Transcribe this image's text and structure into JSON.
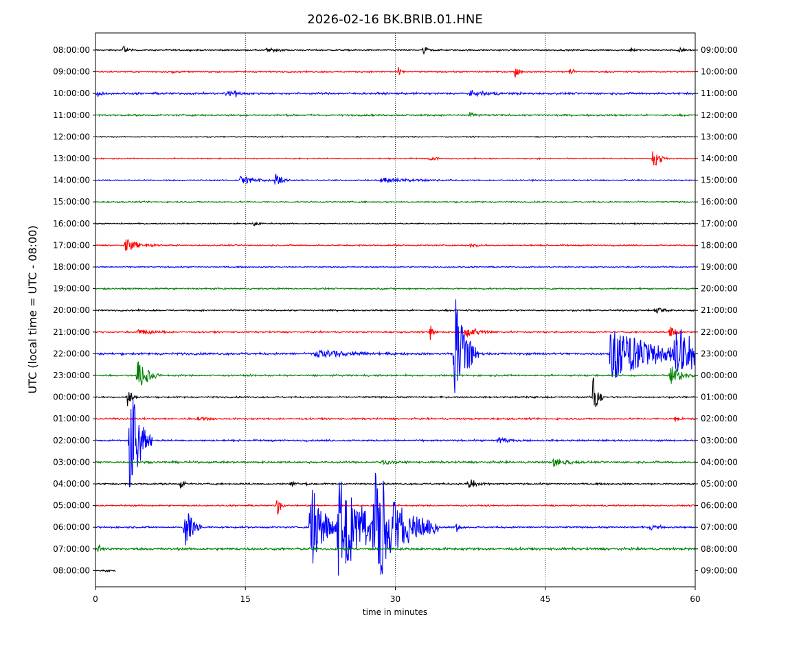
{
  "chart_data": {
    "type": "line",
    "title": "2026-02-16 BK.BRIB.01.HNE",
    "xlabel": "time in minutes",
    "ylabel": "UTC (local time = UTC - 08:00)",
    "xlim": [
      0,
      60
    ],
    "x_ticks": [
      0,
      15,
      30,
      45,
      60
    ],
    "x_tick_labels": [
      "0",
      "15",
      "30",
      "45",
      "60"
    ],
    "vertical_gridlines": [
      15,
      30,
      45
    ],
    "grid": "vertical dotted",
    "trace_colors": [
      "#000000",
      "#ff0000",
      "#0000ff",
      "#008000"
    ],
    "left_labels": [
      "08:00:00",
      "09:00:00",
      "10:00:00",
      "11:00:00",
      "12:00:00",
      "13:00:00",
      "14:00:00",
      "15:00:00",
      "16:00:00",
      "17:00:00",
      "18:00:00",
      "19:00:00",
      "20:00:00",
      "21:00:00",
      "22:00:00",
      "23:00:00",
      "00:00:00",
      "01:00:00",
      "02:00:00",
      "03:00:00",
      "04:00:00",
      "05:00:00",
      "06:00:00",
      "07:00:00",
      "08:00:00"
    ],
    "right_labels": [
      "09:00:00",
      "10:00:00",
      "11:00:00",
      "12:00:00",
      "13:00:00",
      "14:00:00",
      "15:00:00",
      "16:00:00",
      "17:00:00",
      "18:00:00",
      "19:00:00",
      "20:00:00",
      "21:00:00",
      "22:00:00",
      "23:00:00",
      "00:00:00",
      "01:00:00",
      "02:00:00",
      "03:00:00",
      "04:00:00",
      "05:00:00",
      "06:00:00",
      "07:00:00",
      "08:00:00",
      "09:00:00"
    ],
    "noise_level": [
      0.8,
      0.8,
      1.2,
      1.0,
      0.6,
      0.7,
      0.7,
      0.8,
      0.7,
      0.8,
      0.7,
      0.9,
      0.9,
      0.9,
      1.3,
      1.0,
      0.9,
      1.0,
      1.0,
      1.2,
      1.0,
      0.9,
      1.0,
      1.4,
      0.8
    ],
    "end_minute": [
      60,
      60,
      60,
      60,
      60,
      60,
      60,
      60,
      60,
      60,
      60,
      60,
      60,
      60,
      60,
      60,
      60,
      60,
      60,
      60,
      60,
      60,
      60,
      60,
      2
    ],
    "events": [
      {
        "row": 0,
        "minute": 2.8,
        "amp": 8,
        "dur": 0.4
      },
      {
        "row": 0,
        "minute": 17,
        "amp": 4,
        "dur": 1.5
      },
      {
        "row": 0,
        "minute": 32.8,
        "amp": 7,
        "dur": 0.5
      },
      {
        "row": 0,
        "minute": 53.5,
        "amp": 4,
        "dur": 0.5
      },
      {
        "row": 0,
        "minute": 58.3,
        "amp": 5,
        "dur": 0.5
      },
      {
        "row": 1,
        "minute": 7.8,
        "amp": 5,
        "dur": 0.3
      },
      {
        "row": 1,
        "minute": 30.3,
        "amp": 6,
        "dur": 0.4
      },
      {
        "row": 1,
        "minute": 42,
        "amp": 8,
        "dur": 0.4
      },
      {
        "row": 1,
        "minute": 47.5,
        "amp": 7,
        "dur": 0.3
      },
      {
        "row": 2,
        "minute": 0.2,
        "amp": 6,
        "dur": 0.4
      },
      {
        "row": 2,
        "minute": 13,
        "amp": 5,
        "dur": 1.0
      },
      {
        "row": 2,
        "minute": 14,
        "amp": 7,
        "dur": 0.3
      },
      {
        "row": 2,
        "minute": 37.5,
        "amp": 4,
        "dur": 2.5
      },
      {
        "row": 3,
        "minute": 37.3,
        "amp": 4,
        "dur": 0.8
      },
      {
        "row": 5,
        "minute": 33.5,
        "amp": 4,
        "dur": 0.8
      },
      {
        "row": 5,
        "minute": 55.8,
        "amp": 17,
        "dur": 0.6
      },
      {
        "row": 6,
        "minute": 14.5,
        "amp": 8,
        "dur": 1.4
      },
      {
        "row": 6,
        "minute": 18,
        "amp": 13,
        "dur": 0.6
      },
      {
        "row": 6,
        "minute": 28.5,
        "amp": 5,
        "dur": 3.0
      },
      {
        "row": 8,
        "minute": 15.8,
        "amp": 3,
        "dur": 0.8
      },
      {
        "row": 9,
        "minute": 3,
        "amp": 9,
        "dur": 1.5
      },
      {
        "row": 9,
        "minute": 37.5,
        "amp": 4,
        "dur": 1.0
      },
      {
        "row": 12,
        "minute": 56,
        "amp": 5,
        "dur": 1.2
      },
      {
        "row": 13,
        "minute": 4.3,
        "amp": 5,
        "dur": 1.5
      },
      {
        "row": 13,
        "minute": 33.5,
        "amp": 12,
        "dur": 0.3
      },
      {
        "row": 13,
        "minute": 37,
        "amp": 8,
        "dur": 1.5
      },
      {
        "row": 13,
        "minute": 57.5,
        "amp": 10,
        "dur": 0.6
      },
      {
        "row": 14,
        "minute": 22,
        "amp": 7,
        "dur": 3.5
      },
      {
        "row": 14,
        "minute": 35.9,
        "amp": 92,
        "dur": 1.0
      },
      {
        "row": 14,
        "minute": 51.5,
        "amp": 40,
        "dur": 4.5
      },
      {
        "row": 14,
        "minute": 58,
        "amp": 40,
        "dur": 2.2
      },
      {
        "row": 15,
        "minute": 4.2,
        "amp": 28,
        "dur": 0.9
      },
      {
        "row": 15,
        "minute": 57.5,
        "amp": 15,
        "dur": 1.2
      },
      {
        "row": 16,
        "minute": 3.2,
        "amp": 18,
        "dur": 0.4
      },
      {
        "row": 16,
        "minute": 49.8,
        "amp": 38,
        "dur": 0.4
      },
      {
        "row": 16,
        "minute": 42.8,
        "amp": 2,
        "dur": 1.5
      },
      {
        "row": 17,
        "minute": 10.2,
        "amp": 4,
        "dur": 1.0
      },
      {
        "row": 17,
        "minute": 58,
        "amp": 4,
        "dur": 0.8
      },
      {
        "row": 18,
        "minute": 3.4,
        "amp": 95,
        "dur": 0.9
      },
      {
        "row": 18,
        "minute": 40.2,
        "amp": 6,
        "dur": 1.5
      },
      {
        "row": 19,
        "minute": 45.8,
        "amp": 7,
        "dur": 1.5
      },
      {
        "row": 19,
        "minute": 28.5,
        "amp": 5,
        "dur": 1.2
      },
      {
        "row": 20,
        "minute": 8.5,
        "amp": 8,
        "dur": 0.3
      },
      {
        "row": 20,
        "minute": 19.5,
        "amp": 4,
        "dur": 1.0
      },
      {
        "row": 20,
        "minute": 37.3,
        "amp": 10,
        "dur": 0.8
      },
      {
        "row": 21,
        "minute": 18.2,
        "amp": 20,
        "dur": 0.3
      },
      {
        "row": 22,
        "minute": 8.9,
        "amp": 40,
        "dur": 0.7
      },
      {
        "row": 22,
        "minute": 21.5,
        "amp": 70,
        "dur": 1.2
      },
      {
        "row": 22,
        "minute": 24.3,
        "amp": 90,
        "dur": 2.3
      },
      {
        "row": 22,
        "minute": 27.8,
        "amp": 90,
        "dur": 2.6
      },
      {
        "row": 22,
        "minute": 36.1,
        "amp": 8,
        "dur": 0.3
      },
      {
        "row": 22,
        "minute": 55.5,
        "amp": 5,
        "dur": 1.0
      },
      {
        "row": 23,
        "minute": 0.3,
        "amp": 6,
        "dur": 0.6
      },
      {
        "row": 24,
        "minute": 1.0,
        "amp": 2,
        "dur": 0.4
      }
    ]
  }
}
